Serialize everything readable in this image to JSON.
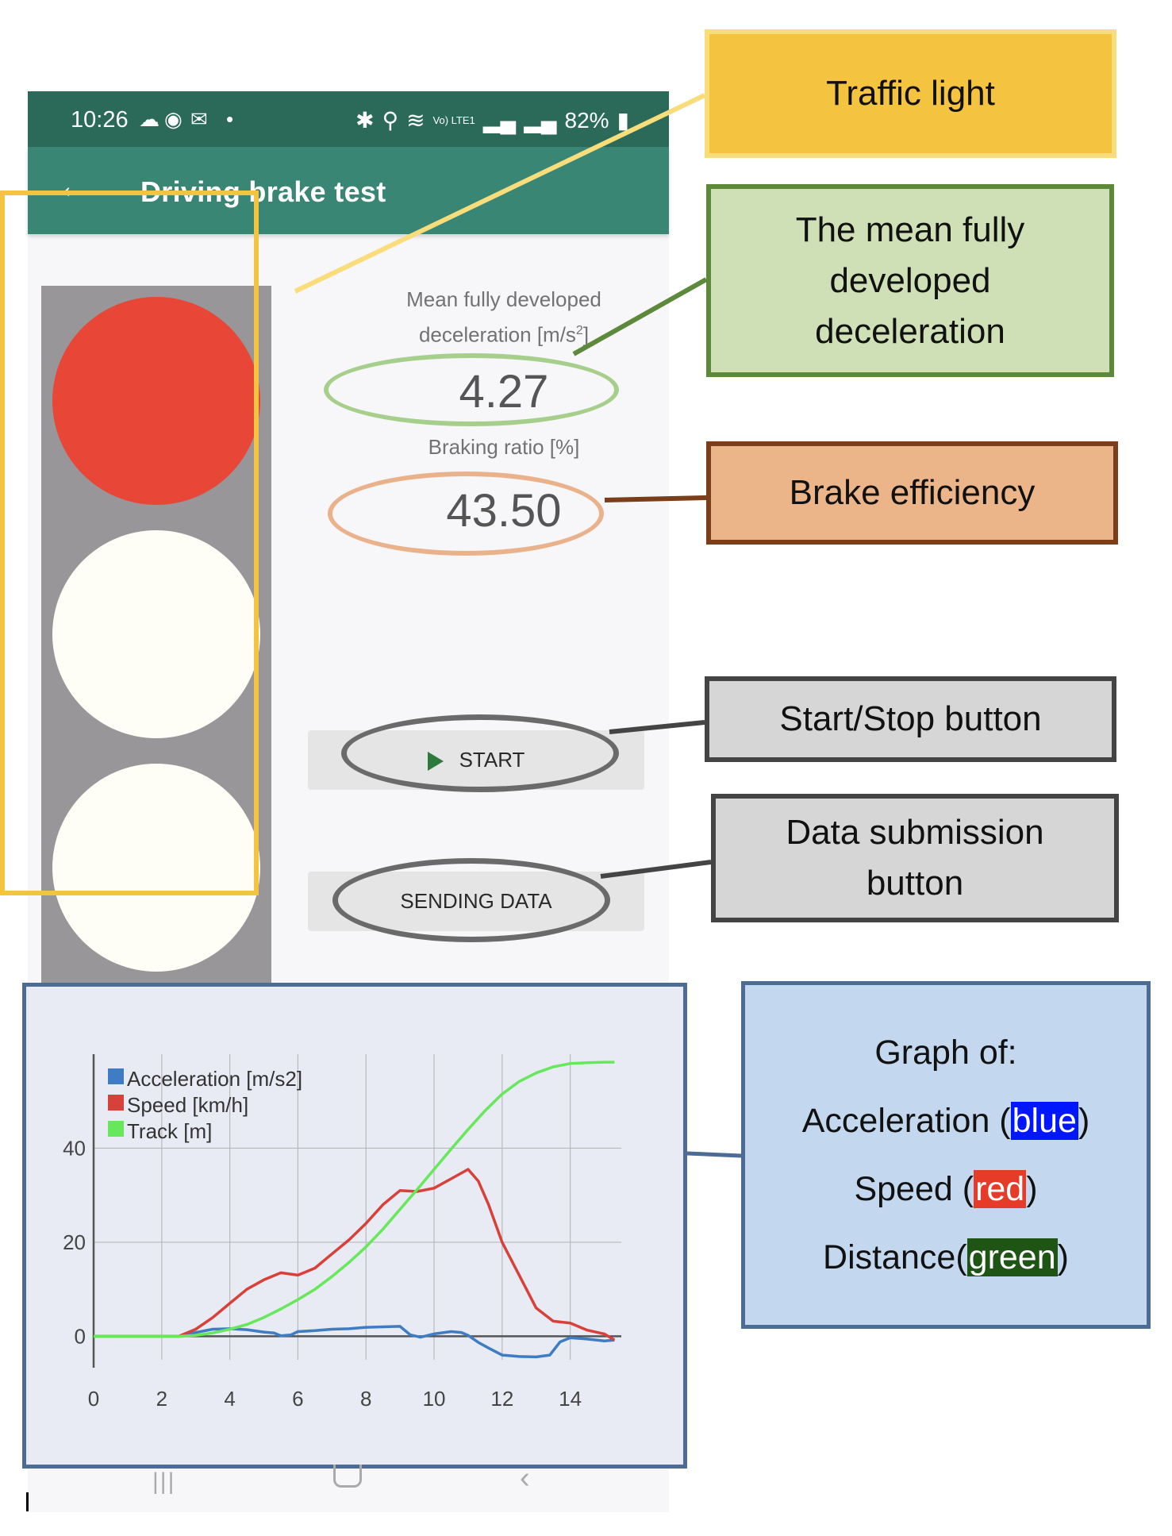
{
  "status_bar": {
    "time": "10:26",
    "battery": "82%",
    "network": "Vo) LTE1"
  },
  "app_bar": {
    "title": "Driving brake test"
  },
  "metrics": {
    "deceleration_label_line1": "Mean fully developed",
    "deceleration_label_line2": "deceleration [m/s",
    "deceleration_label_sup": "2",
    "deceleration_label_end": "]",
    "deceleration_value": "4.27",
    "braking_ratio_label": "Braking ratio [%]",
    "braking_ratio_value": "43.50"
  },
  "buttons": {
    "start_label": "START",
    "sending_label": "SENDING DATA"
  },
  "traffic_light": {
    "active": "red",
    "colors": {
      "red": "#e84636",
      "off": "#fefdf6",
      "housing": "#99969a"
    }
  },
  "callouts": {
    "traffic_light": "Traffic light",
    "deceleration_line1": "The mean fully",
    "deceleration_line2": "developed",
    "deceleration_line3": "deceleration",
    "brake_efficiency": "Brake efficiency",
    "start_stop": "Start/Stop button",
    "submission_line1": "Data submission",
    "submission_line2": "button",
    "graph_title": "Graph of:",
    "graph_accel_pre": "Acceleration (",
    "graph_accel_word": "blue",
    "graph_accel_post": ")",
    "graph_speed_pre": "Speed (",
    "graph_speed_word": "red",
    "graph_speed_post": ")",
    "graph_dist_pre": "Distance(",
    "graph_dist_word": "green",
    "graph_dist_post": ")"
  },
  "chart_data": {
    "type": "line",
    "xlim": [
      0,
      15.5
    ],
    "ylim": [
      -5,
      60
    ],
    "x_ticks": [
      0,
      2,
      4,
      6,
      8,
      10,
      12,
      14
    ],
    "y_ticks": [
      0,
      20,
      40
    ],
    "x_tick_labels": [
      "0",
      "2",
      "4",
      "6",
      "8",
      "10",
      "12",
      "14"
    ],
    "y_tick_labels": [
      "0",
      "20",
      "40"
    ],
    "grid": true,
    "legend_position": "top-left",
    "series": [
      {
        "name": "Acceleration [m/s2]",
        "color": "#3e7cc4",
        "x": [
          0,
          2.5,
          3,
          3.5,
          4,
          4.5,
          5,
          5.3,
          5.5,
          5.8,
          6,
          6.5,
          7,
          7.5,
          8,
          8.5,
          9,
          9.3,
          9.6,
          10,
          10.5,
          10.8,
          11,
          11.3,
          11.6,
          12,
          12.5,
          13,
          13.4,
          13.7,
          14,
          14.5,
          15,
          15.3
        ],
        "y": [
          0,
          0,
          0.8,
          1.5,
          1.6,
          1.4,
          0.9,
          0.7,
          0.1,
          0.3,
          1,
          1.2,
          1.5,
          1.6,
          1.9,
          2,
          2.1,
          0.3,
          -0.2,
          0.5,
          1,
          0.8,
          0.2,
          -1.3,
          -2.5,
          -4,
          -4.3,
          -4.4,
          -4,
          -1.2,
          -0.3,
          -0.6,
          -1,
          -0.8
        ]
      },
      {
        "name": "Speed [km/h]",
        "color": "#d8403a",
        "x": [
          0,
          2.5,
          3,
          3.5,
          4,
          4.5,
          5,
          5.5,
          6,
          6.5,
          7,
          7.5,
          8,
          8.5,
          9,
          9.5,
          10,
          10.5,
          11,
          11.3,
          11.6,
          12,
          12.5,
          13,
          13.5,
          14,
          14.5,
          15,
          15.3
        ],
        "y": [
          0,
          0,
          1.5,
          4,
          7,
          10,
          12,
          13.5,
          13,
          14.5,
          17.5,
          20.5,
          24,
          28,
          31,
          30.8,
          31.5,
          33.5,
          35.5,
          33,
          28,
          20,
          13,
          6,
          3.2,
          2.8,
          1.3,
          0.5,
          -0.8
        ]
      },
      {
        "name": "Track [m]",
        "color": "#66e85a",
        "x": [
          0,
          2.5,
          3,
          3.5,
          4,
          4.5,
          5,
          5.5,
          6,
          6.5,
          7,
          7.5,
          8,
          8.5,
          9,
          9.5,
          10,
          10.5,
          11,
          11.5,
          12,
          12.5,
          13,
          13.5,
          14,
          14.5,
          15,
          15.3
        ],
        "y": [
          0,
          0,
          0.2,
          0.7,
          1.5,
          2.5,
          4,
          5.8,
          7.8,
          10,
          12.7,
          15.7,
          19,
          22.8,
          27,
          31.2,
          35.5,
          39.8,
          44,
          48,
          51.5,
          54.2,
          56,
          57.3,
          58,
          58.2,
          58.3,
          58.3
        ]
      }
    ]
  }
}
